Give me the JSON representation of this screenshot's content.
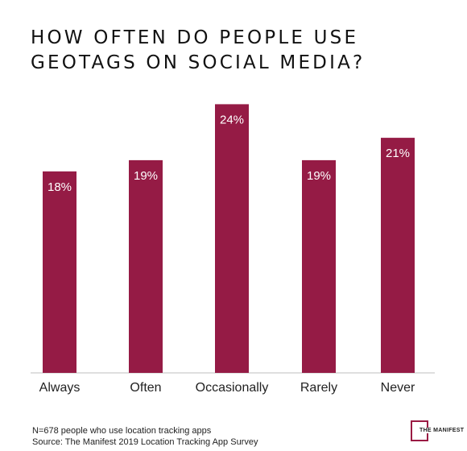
{
  "chart_data": {
    "type": "bar",
    "title": "HOW OFTEN DO PEOPLE USE GEOTAGS ON SOCIAL MEDIA?",
    "categories": [
      "Always",
      "Often",
      "Occasionally",
      "Rarely",
      "Never"
    ],
    "values": [
      18,
      19,
      24,
      19,
      21
    ],
    "value_labels": [
      "18%",
      "19%",
      "24%",
      "19%",
      "21%"
    ],
    "unit": "%",
    "ylim": [
      0,
      28
    ],
    "grid": false,
    "legend": "none",
    "bar_color": "#951b45",
    "label_color": "#ffffff"
  },
  "footnote": {
    "line1": "N=678 people who use location tracking apps",
    "line2": "Source: The Manifest 2019 Location Tracking App Survey"
  },
  "logo": {
    "text": "THE MANIFEST"
  }
}
